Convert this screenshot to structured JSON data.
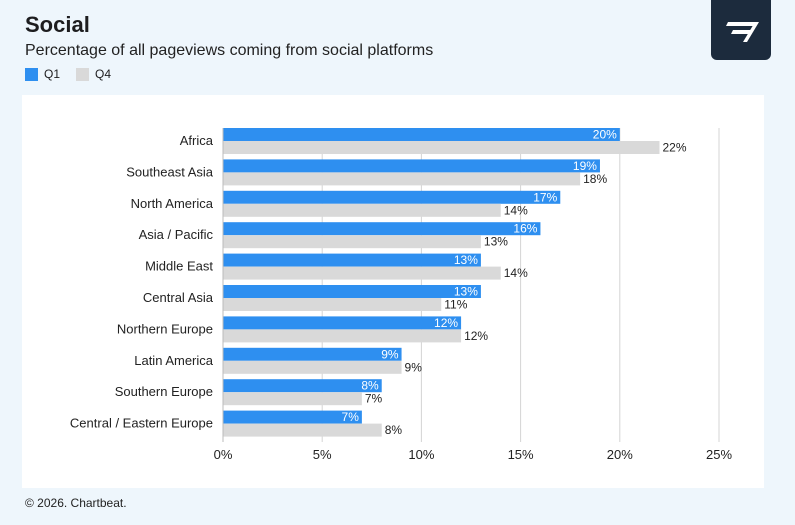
{
  "header": {
    "title": "Social",
    "subtitle": "Percentage of all pageviews coming from social platforms"
  },
  "legend": [
    {
      "label": "Q1",
      "color": "#2e8ff0"
    },
    {
      "label": "Q4",
      "color": "#d9d9d9"
    }
  ],
  "logo": {
    "icon": "chartbeat-logo-icon"
  },
  "footer": {
    "copyright": "© 2026. Chartbeat."
  },
  "chart_data": {
    "type": "bar",
    "orientation": "horizontal",
    "categories": [
      "Africa",
      "Southeast Asia",
      "North America",
      "Asia / Pacific",
      "Middle East",
      "Central Asia",
      "Northern Europe",
      "Latin America",
      "Southern Europe",
      "Central / Eastern Europe"
    ],
    "series": [
      {
        "name": "Q1",
        "color": "#2e8ff0",
        "values": [
          20,
          19,
          17,
          16,
          13,
          13,
          12,
          9,
          8,
          7
        ]
      },
      {
        "name": "Q4",
        "color": "#d9d9d9",
        "values": [
          22,
          18,
          14,
          13,
          14,
          11,
          12,
          9,
          7,
          8
        ]
      }
    ],
    "xlim": [
      0,
      25
    ],
    "xticks": [
      0,
      5,
      10,
      15,
      20,
      25
    ],
    "tick_suffix": "%",
    "grid": true
  }
}
